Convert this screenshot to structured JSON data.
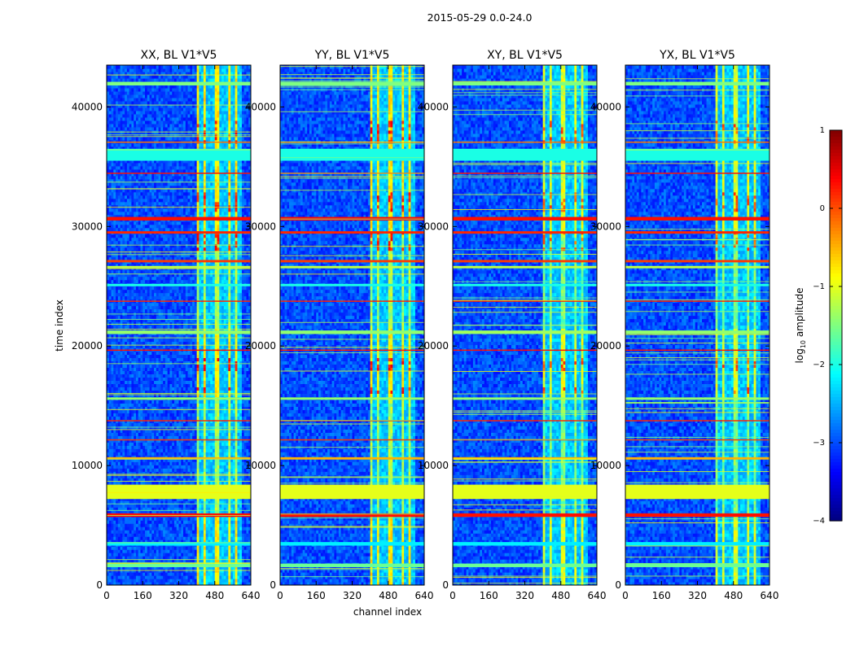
{
  "chart_data": {
    "type": "heatmap",
    "suptitle": "2015-05-29 0.0-24.0",
    "xlabel": "channel index",
    "ylabel": "time index",
    "xlim": [
      0,
      640
    ],
    "ylim": [
      0,
      43500
    ],
    "xticks": [
      0,
      160,
      320,
      480,
      640
    ],
    "yticks": [
      0,
      10000,
      20000,
      30000,
      40000
    ],
    "colormap": "jet",
    "colorbar": {
      "label": "log10 amplitude",
      "label_base": "log",
      "label_sub": "10",
      "label_rest": " amplitude",
      "range": [
        -4,
        1
      ],
      "ticks": [
        1,
        0,
        -1,
        -2,
        -3,
        -4
      ],
      "tick_labels": [
        "1",
        "0",
        "−1",
        "−2",
        "−3",
        "−4"
      ]
    },
    "panels": [
      {
        "title": "XX, BL V1*V5",
        "pol": "XX",
        "show_yaxis_label": true
      },
      {
        "title": "YY, BL V1*V5",
        "pol": "YY",
        "show_yaxis_label": false
      },
      {
        "title": "XY, BL V1*V5",
        "pol": "XY",
        "show_yaxis_label": false
      },
      {
        "title": "YX, BL V1*V5",
        "pol": "YX",
        "show_yaxis_label": false
      }
    ],
    "background_level": -3.0,
    "bright_channel_range": [
      405,
      600
    ],
    "bright_channel_level": -1.3,
    "strong_time_ranges": [
      [
        0,
        6000
      ],
      [
        15500,
        21500
      ],
      [
        29000,
        43500
      ]
    ],
    "strong_level": -0.8,
    "bright_columns": [
      420,
      450,
      470,
      510,
      530,
      560,
      590
    ],
    "hot_spot_time_ranges": [
      [
        37000,
        39000
      ],
      [
        31200,
        33000
      ],
      [
        18000,
        19000
      ],
      [
        16000,
        16600
      ],
      [
        28000,
        29500
      ]
    ],
    "hot_spot_level": 0.2,
    "flagged_rows": [
      {
        "t0": 7200,
        "t1": 8400,
        "level": -1.0
      },
      {
        "t0": 35500,
        "t1": 36500,
        "level": -2.0
      },
      {
        "t0": 5700,
        "t1": 6000,
        "level": 0.3
      },
      {
        "t0": 3300,
        "t1": 3600,
        "level": -2.2
      },
      {
        "t0": 1500,
        "t1": 1800,
        "level": -1.6
      },
      {
        "t0": 30500,
        "t1": 30800,
        "level": 0.3
      },
      {
        "t0": 29400,
        "t1": 29600,
        "level": 0.2
      },
      {
        "t0": 27000,
        "t1": 27200,
        "level": 0.1
      },
      {
        "t0": 21000,
        "t1": 21300,
        "level": -1.4
      },
      {
        "t0": 12100,
        "t1": 12200,
        "level": 0.1
      },
      {
        "t0": 10500,
        "t1": 10700,
        "level": -0.5
      },
      {
        "t0": 41800,
        "t1": 42100,
        "level": -1.5
      },
      {
        "t0": 34400,
        "t1": 34500,
        "level": 0.3
      },
      {
        "t0": 23700,
        "t1": 23800,
        "level": 0.2
      },
      {
        "t0": 19600,
        "t1": 19700,
        "level": 0.3
      },
      {
        "t0": 13700,
        "t1": 13800,
        "level": 0.2
      },
      {
        "t0": 15500,
        "t1": 15700,
        "level": -1.4
      },
      {
        "t0": 37000,
        "t1": 37100,
        "level": -0.2
      },
      {
        "t0": 26500,
        "t1": 26700,
        "level": -1.2
      },
      {
        "t0": 25000,
        "t1": 25200,
        "level": -2.0
      }
    ]
  }
}
